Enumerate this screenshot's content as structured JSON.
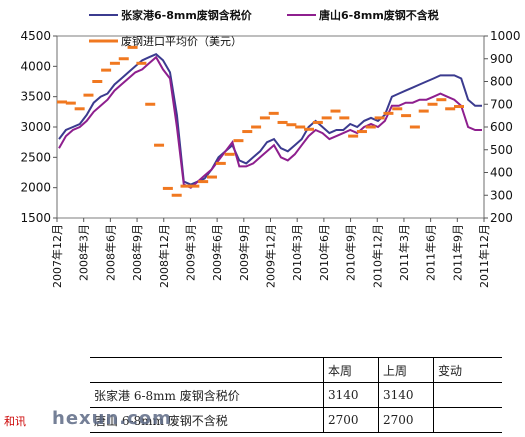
{
  "chart_data": {
    "type": "line",
    "legend": {
      "s1": "张家港6-8mm废钢含税价",
      "s2": "唐山6-8mm废钢不含税",
      "s3": "废钢进口平均价（美元）"
    },
    "left_axis": {
      "min": 1500,
      "max": 4500,
      "ticks": [
        "1500",
        "2000",
        "2500",
        "3000",
        "3500",
        "4000",
        "4500"
      ]
    },
    "right_axis": {
      "min": 200,
      "max": 1000,
      "ticks": [
        "200",
        "300",
        "400",
        "500",
        "600",
        "700",
        "800",
        "900",
        "1000"
      ]
    },
    "x_ticks": [
      "2007年12月",
      "2008年3月",
      "2008年6月",
      "2008年9月",
      "2008年12月",
      "2009年3月",
      "2009年6月",
      "2009年9月",
      "2009年12月",
      "2010年3月",
      "2010年6月",
      "2010年9月",
      "2010年12月",
      "2011年3月",
      "2011年6月",
      "2011年9月",
      "2011年12月"
    ],
    "series": [
      {
        "name": "张家港6-8mm废钢含税价",
        "axis": "left",
        "color": "#3b3b8f",
        "values": [
          2800,
          2950,
          3000,
          3050,
          3200,
          3400,
          3500,
          3550,
          3700,
          3800,
          3900,
          4000,
          4100,
          4150,
          4200,
          4100,
          3900,
          3200,
          2100,
          2050,
          2100,
          2150,
          2300,
          2500,
          2600,
          2700,
          2450,
          2400,
          2500,
          2600,
          2750,
          2800,
          2650,
          2600,
          2700,
          2800,
          3000,
          3100,
          3000,
          2900,
          2950,
          2950,
          3050,
          3000,
          3100,
          3150,
          3100,
          3200,
          3500,
          3550,
          3600,
          3650,
          3700,
          3750,
          3800,
          3850,
          3850,
          3850,
          3800,
          3450,
          3350,
          3350
        ]
      },
      {
        "name": "唐山6-8mm废钢不含税",
        "axis": "left",
        "color": "#8e1f8e",
        "values": [
          2650,
          2850,
          2950,
          3000,
          3100,
          3250,
          3350,
          3450,
          3600,
          3700,
          3800,
          3900,
          3950,
          4050,
          4150,
          3950,
          3800,
          3000,
          2050,
          2000,
          2100,
          2200,
          2300,
          2450,
          2600,
          2750,
          2350,
          2350,
          2400,
          2500,
          2600,
          2700,
          2500,
          2450,
          2550,
          2700,
          2850,
          2950,
          2900,
          2800,
          2850,
          2900,
          2950,
          2900,
          3000,
          3050,
          3000,
          3100,
          3350,
          3350,
          3400,
          3400,
          3450,
          3450,
          3500,
          3550,
          3500,
          3450,
          3350,
          3000,
          2950,
          2950
        ]
      },
      {
        "name": "废钢进口平均价（美元）",
        "axis": "right",
        "color": "#f07820",
        "values": [
          710,
          705,
          680,
          740,
          800,
          850,
          880,
          900,
          950,
          880,
          700,
          520,
          330,
          300,
          340,
          340,
          360,
          380,
          440,
          480,
          540,
          580,
          600,
          640,
          660,
          620,
          610,
          600,
          590,
          620,
          640,
          670,
          640,
          560,
          580,
          600,
          640,
          660,
          680,
          650,
          600,
          670,
          700,
          720,
          680,
          690
        ]
      }
    ]
  },
  "table": {
    "headers": [
      "",
      "本周",
      "上周",
      "变动"
    ],
    "rows": [
      [
        "张家港 6-8mm 废钢含税价",
        "3140",
        "3140",
        ""
      ],
      [
        "唐山 6-8mm 废钢不含税",
        "2700",
        "2700",
        ""
      ]
    ]
  },
  "watermark": {
    "left": "和讯",
    "main": "hexun.com"
  }
}
